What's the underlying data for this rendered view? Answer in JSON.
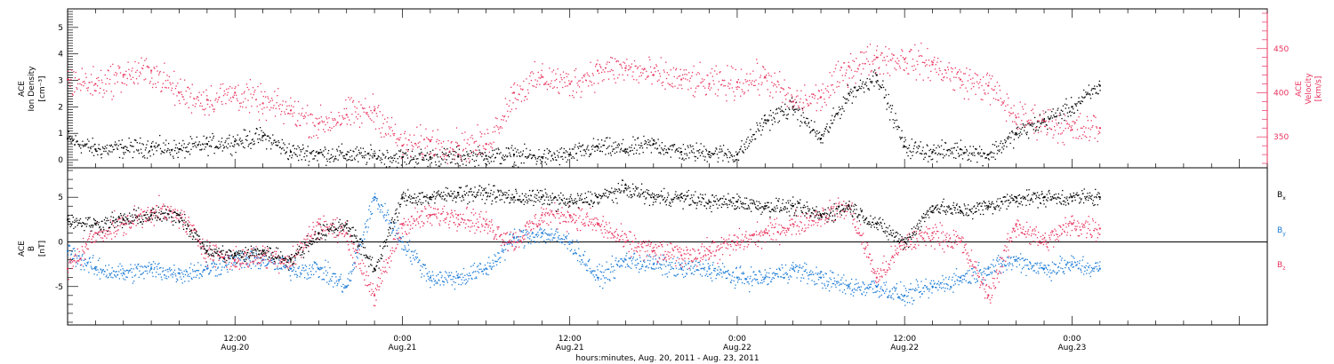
{
  "chart_data": [
    {
      "type": "scatter",
      "panel": "top",
      "ylabel_left": [
        "ACE",
        "Ion Density",
        "[cm⁻³]"
      ],
      "ylabel_right": [
        "ACE",
        "Velocity",
        "[km/s]"
      ],
      "left_ylim": [
        -0.3,
        5.7
      ],
      "left_yticks": [
        "0",
        "1",
        "2",
        "3",
        "4",
        "5"
      ],
      "right_ylim": [
        315,
        495
      ],
      "right_yticks": [
        "350",
        "400",
        "450"
      ],
      "series": [
        {
          "axis": "left",
          "color": "#000000",
          "x_hours": [
            0,
            2,
            4,
            6,
            8,
            10,
            12,
            14,
            16,
            18,
            20,
            22,
            24,
            26,
            28,
            30,
            32,
            34,
            36,
            38,
            40,
            42,
            44,
            46,
            48,
            50,
            52,
            54,
            56,
            58,
            60,
            62,
            64,
            66,
            68,
            70,
            72,
            74
          ],
          "y": [
            0.8,
            0.4,
            0.45,
            0.5,
            0.4,
            0.6,
            0.7,
            0.9,
            0.3,
            0.25,
            0.2,
            0.15,
            0.1,
            0.1,
            0.12,
            0.15,
            0.2,
            0.1,
            0.2,
            0.5,
            0.4,
            0.6,
            0.3,
            0.3,
            0.2,
            1.5,
            2.0,
            0.8,
            2.5,
            3.2,
            0.5,
            0.3,
            0.4,
            0.2,
            1.0,
            1.5,
            2.0,
            2.8
          ]
        },
        {
          "axis": "right",
          "color": "#e8335e",
          "x_hours": [
            0,
            2,
            4,
            6,
            8,
            10,
            12,
            14,
            16,
            18,
            20,
            22,
            24,
            26,
            28,
            30,
            32,
            34,
            36,
            38,
            40,
            42,
            44,
            46,
            48,
            50,
            52,
            54,
            56,
            58,
            60,
            62,
            64,
            66,
            68,
            70,
            72,
            74
          ],
          "y": [
            415,
            410,
            420,
            425,
            400,
            392,
            400,
            388,
            380,
            365,
            375,
            380,
            340,
            345,
            340,
            342,
            400,
            418,
            410,
            425,
            428,
            420,
            415,
            410,
            412,
            418,
            390,
            395,
            430,
            440,
            438,
            432,
            415,
            408,
            372,
            368,
            358,
            360
          ]
        }
      ]
    },
    {
      "type": "scatter",
      "panel": "bottom",
      "ylabel_left": [
        "ACE",
        "B",
        "[nT]"
      ],
      "ylim": [
        -9.3,
        8.3
      ],
      "yticks": [
        "-5",
        "0",
        "5"
      ],
      "zero_line": true,
      "series": [
        {
          "name": "B",
          "subscript": "x",
          "color": "#000000",
          "x_hours": [
            0,
            2,
            4,
            6,
            8,
            10,
            12,
            14,
            16,
            18,
            20,
            22,
            24,
            26,
            28,
            30,
            32,
            34,
            36,
            38,
            40,
            42,
            44,
            46,
            48,
            50,
            52,
            54,
            56,
            58,
            60,
            62,
            64,
            66,
            68,
            70,
            72,
            74
          ],
          "y": [
            2.5,
            2.0,
            2.5,
            3.0,
            3.0,
            -1.0,
            -1.5,
            -1.0,
            -2.0,
            1.0,
            2.0,
            -3.0,
            5.0,
            5.0,
            5.5,
            5.5,
            5.0,
            5.0,
            4.5,
            5.0,
            6.0,
            5.0,
            5.0,
            4.5,
            4.5,
            4.0,
            4.0,
            3.0,
            4.0,
            2.0,
            0.0,
            4.0,
            3.5,
            4.0,
            5.0,
            5.0,
            5.0,
            5.0
          ]
        },
        {
          "name": "B",
          "subscript": "y",
          "color": "#1a7ad6",
          "x_hours": [
            0,
            2,
            4,
            6,
            8,
            10,
            12,
            14,
            16,
            18,
            20,
            22,
            24,
            26,
            28,
            30,
            32,
            34,
            36,
            38,
            40,
            42,
            44,
            46,
            48,
            50,
            52,
            54,
            56,
            58,
            60,
            62,
            64,
            66,
            68,
            70,
            72,
            74
          ],
          "y": [
            -1.0,
            -3.0,
            -3.5,
            -3.0,
            -3.5,
            -3.0,
            -2.0,
            -2.0,
            -3.0,
            -3.0,
            -5.0,
            5.0,
            0.0,
            -4.0,
            -4.0,
            -3.0,
            0.5,
            1.0,
            0.0,
            -4.0,
            -2.0,
            -2.5,
            -3.0,
            -3.0,
            -4.0,
            -4.0,
            -3.0,
            -4.0,
            -5.0,
            -5.0,
            -6.0,
            -5.0,
            -4.0,
            -3.0,
            -2.0,
            -3.0,
            -2.5,
            -3.0
          ]
        },
        {
          "name": "B",
          "subscript": "z",
          "color": "#e8335e",
          "x_hours": [
            0,
            2,
            4,
            6,
            8,
            10,
            12,
            14,
            16,
            18,
            20,
            22,
            24,
            26,
            28,
            30,
            32,
            34,
            36,
            38,
            40,
            42,
            44,
            46,
            48,
            50,
            52,
            54,
            56,
            58,
            60,
            62,
            64,
            66,
            68,
            70,
            72,
            74
          ],
          "y": [
            -3.0,
            1.0,
            2.0,
            3.5,
            3.0,
            -1.0,
            -2.0,
            -1.5,
            -2.0,
            2.0,
            1.0,
            -6.0,
            2.0,
            3.0,
            3.0,
            2.0,
            0.0,
            3.0,
            3.0,
            2.0,
            0.0,
            -1.0,
            -1.5,
            -1.0,
            0.0,
            1.0,
            2.0,
            3.0,
            4.0,
            -4.0,
            0.0,
            1.0,
            0.0,
            -6.0,
            2.0,
            0.0,
            2.0,
            1.5
          ]
        }
      ]
    }
  ],
  "xaxis": {
    "ticks": [
      {
        "hour": 12,
        "time": "12:00",
        "date": "Aug.20"
      },
      {
        "hour": 24,
        "time": "0:00",
        "date": "Aug.21"
      },
      {
        "hour": 36,
        "time": "12:00",
        "date": "Aug.21"
      },
      {
        "hour": 48,
        "time": "0:00",
        "date": "Aug.22"
      },
      {
        "hour": 60,
        "time": "12:00",
        "date": "Aug.22"
      },
      {
        "hour": 72,
        "time": "0:00",
        "date": "Aug.23"
      }
    ],
    "label": "hours:minutes, Aug. 20, 2011 - Aug. 23, 2011"
  }
}
